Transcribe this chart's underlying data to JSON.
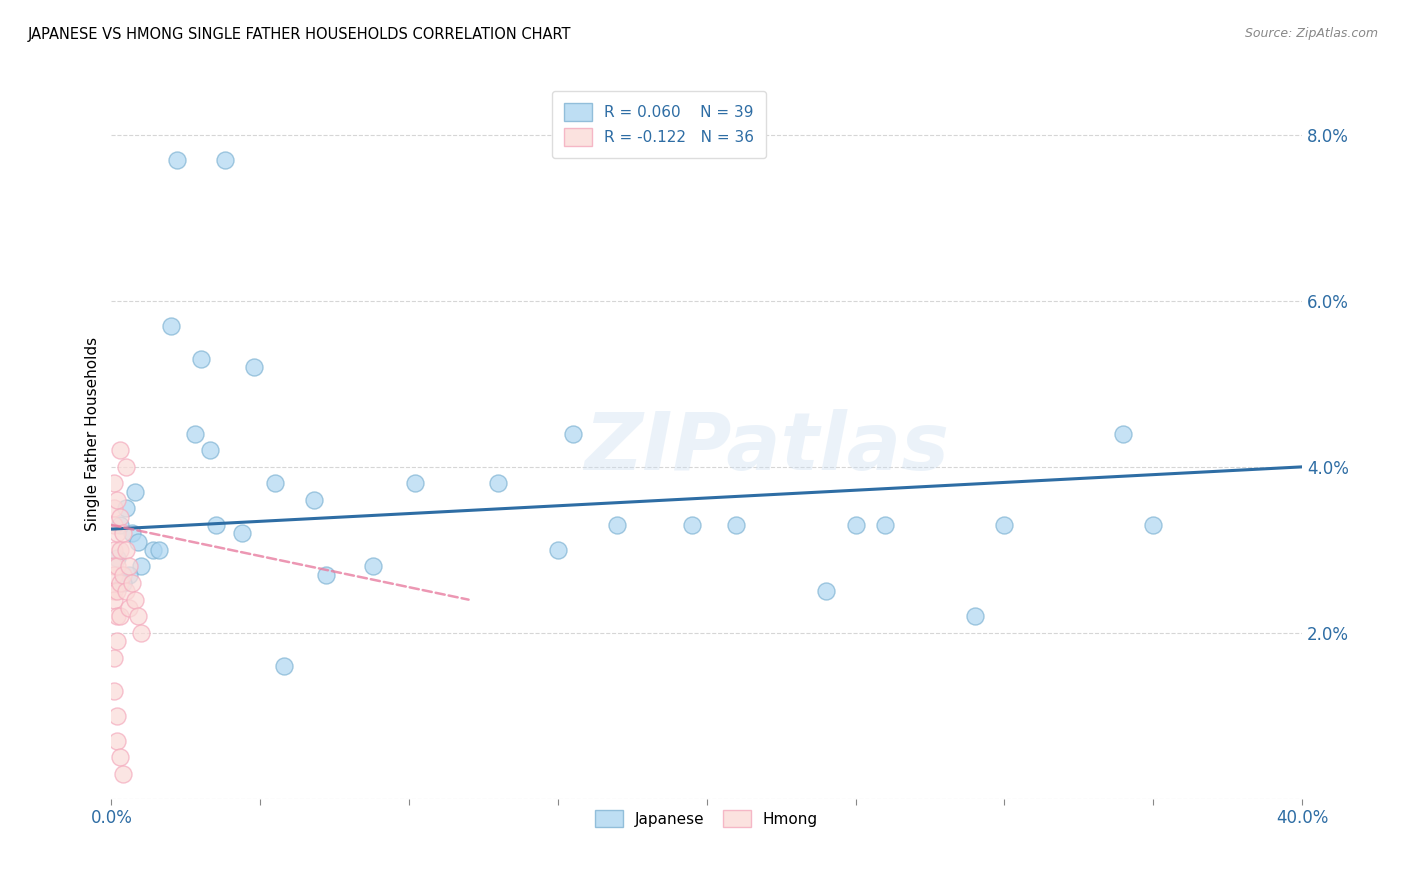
{
  "title": "JAPANESE VS HMONG SINGLE FATHER HOUSEHOLDS CORRELATION CHART",
  "source": "Source: ZipAtlas.com",
  "ylabel": "Single Father Households",
  "watermark": "ZIPatlas",
  "x_min": 0.0,
  "x_max": 0.4,
  "y_min": 0.0,
  "y_max": 0.088,
  "x_ticks": [
    0.0,
    0.05,
    0.1,
    0.15,
    0.2,
    0.25,
    0.3,
    0.35,
    0.4
  ],
  "y_ticks": [
    0.0,
    0.02,
    0.04,
    0.06,
    0.08
  ],
  "blue_color": "#7FB3D3",
  "pink_color": "#F4A9BC",
  "blue_fill_color": "#AED6F1",
  "pink_fill_color": "#FADBD8",
  "blue_line_color": "#2E6DA4",
  "pink_line_color": "#E87DA0",
  "legend_R_blue": "R = 0.060",
  "legend_N_blue": "N = 39",
  "legend_R_pink": "R = -0.122",
  "legend_N_pink": "N = 36",
  "japanese_x": [
    0.022,
    0.038,
    0.02,
    0.03,
    0.008,
    0.005,
    0.003,
    0.007,
    0.009,
    0.014,
    0.016,
    0.01,
    0.006,
    0.004,
    0.028,
    0.033,
    0.048,
    0.055,
    0.068,
    0.13,
    0.17,
    0.24,
    0.29,
    0.34,
    0.002,
    0.035,
    0.044,
    0.058,
    0.072,
    0.088,
    0.102,
    0.155,
    0.195,
    0.25,
    0.3,
    0.35,
    0.15,
    0.21,
    0.26
  ],
  "japanese_y": [
    0.077,
    0.077,
    0.057,
    0.053,
    0.037,
    0.035,
    0.033,
    0.032,
    0.031,
    0.03,
    0.03,
    0.028,
    0.027,
    0.026,
    0.044,
    0.042,
    0.052,
    0.038,
    0.036,
    0.038,
    0.033,
    0.025,
    0.022,
    0.044,
    0.029,
    0.033,
    0.032,
    0.016,
    0.027,
    0.028,
    0.038,
    0.044,
    0.033,
    0.033,
    0.033,
    0.033,
    0.03,
    0.033,
    0.033
  ],
  "hmong_x": [
    0.001,
    0.001,
    0.001,
    0.001,
    0.001,
    0.001,
    0.001,
    0.001,
    0.002,
    0.002,
    0.002,
    0.002,
    0.002,
    0.002,
    0.003,
    0.003,
    0.003,
    0.003,
    0.004,
    0.004,
    0.005,
    0.005,
    0.006,
    0.006,
    0.007,
    0.008,
    0.009,
    0.01,
    0.001,
    0.001,
    0.002,
    0.002,
    0.003,
    0.004,
    0.003,
    0.005
  ],
  "hmong_y": [
    0.038,
    0.035,
    0.033,
    0.03,
    0.028,
    0.027,
    0.025,
    0.024,
    0.036,
    0.032,
    0.028,
    0.025,
    0.022,
    0.019,
    0.034,
    0.03,
    0.026,
    0.022,
    0.032,
    0.027,
    0.03,
    0.025,
    0.028,
    0.023,
    0.026,
    0.024,
    0.022,
    0.02,
    0.017,
    0.013,
    0.01,
    0.007,
    0.005,
    0.003,
    0.042,
    0.04
  ],
  "blue_trendline_x": [
    0.0,
    0.4
  ],
  "blue_trendline_y": [
    0.0325,
    0.04
  ],
  "pink_trendline_x": [
    0.0,
    0.12
  ],
  "pink_trendline_y": [
    0.033,
    0.024
  ]
}
